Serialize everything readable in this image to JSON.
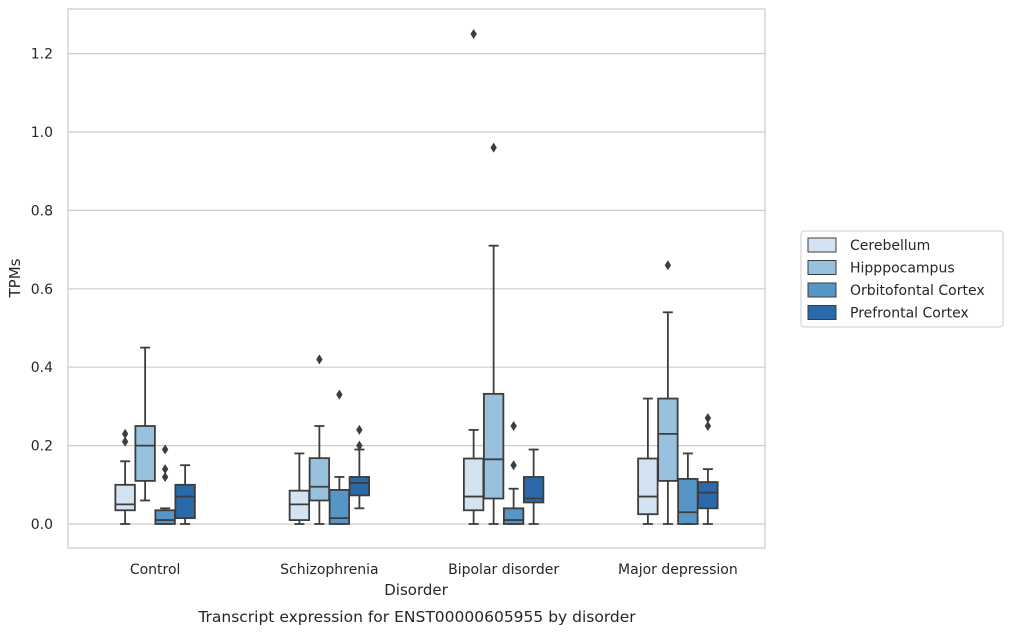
{
  "chart_data": {
    "type": "box",
    "title": "",
    "caption": "Transcript expression for ENST00000605955 by disorder",
    "xlabel": "Disorder",
    "ylabel": "TPMs",
    "ylim": [
      -0.06,
      1.32
    ],
    "yticks": [
      "0.0",
      "0.2",
      "0.4",
      "0.6",
      "0.8",
      "1.0",
      "1.2"
    ],
    "categories": [
      "Control",
      "Schizophrenia",
      "Bipolar disorder",
      "Major depression"
    ],
    "grid": "horizontal",
    "legend_position": "right",
    "series": [
      {
        "name": "Cerebellum",
        "color": "#d4e3f2",
        "boxes": [
          {
            "whislo": 0.0,
            "q1": 0.035,
            "med": 0.05,
            "q3": 0.1,
            "whishi": 0.16,
            "fliers": [
              0.21,
              0.23
            ]
          },
          {
            "whislo": 0.0,
            "q1": 0.01,
            "med": 0.05,
            "q3": 0.085,
            "whishi": 0.18,
            "fliers": []
          },
          {
            "whislo": 0.0,
            "q1": 0.035,
            "med": 0.07,
            "q3": 0.167,
            "whishi": 0.24,
            "fliers": [
              1.25
            ]
          },
          {
            "whislo": 0.0,
            "q1": 0.025,
            "med": 0.07,
            "q3": 0.167,
            "whishi": 0.32,
            "fliers": []
          }
        ]
      },
      {
        "name": "Hipppocampus",
        "color": "#98c1dd",
        "boxes": [
          {
            "whislo": 0.06,
            "q1": 0.11,
            "med": 0.2,
            "q3": 0.25,
            "whishi": 0.45,
            "fliers": []
          },
          {
            "whislo": 0.0,
            "q1": 0.06,
            "med": 0.095,
            "q3": 0.168,
            "whishi": 0.25,
            "fliers": [
              0.42
            ]
          },
          {
            "whislo": 0.0,
            "q1": 0.065,
            "med": 0.165,
            "q3": 0.332,
            "whishi": 0.71,
            "fliers": [
              0.96
            ]
          },
          {
            "whislo": 0.0,
            "q1": 0.11,
            "med": 0.23,
            "q3": 0.32,
            "whishi": 0.54,
            "fliers": [
              0.66
            ]
          }
        ]
      },
      {
        "name": "Orbitofontal Cortex",
        "color": "#5696c7",
        "boxes": [
          {
            "whislo": 0.0,
            "q1": 0.0,
            "med": 0.01,
            "q3": 0.035,
            "whishi": 0.04,
            "fliers": [
              0.12,
              0.14,
              0.19
            ]
          },
          {
            "whislo": 0.0,
            "q1": 0.0,
            "med": 0.015,
            "q3": 0.087,
            "whishi": 0.12,
            "fliers": [
              0.33
            ]
          },
          {
            "whislo": 0.0,
            "q1": 0.0,
            "med": 0.01,
            "q3": 0.04,
            "whishi": 0.09,
            "fliers": [
              0.15,
              0.25
            ]
          },
          {
            "whislo": 0.0,
            "q1": 0.0,
            "med": 0.03,
            "q3": 0.115,
            "whishi": 0.18,
            "fliers": []
          }
        ]
      },
      {
        "name": "Prefrontal Cortex",
        "color": "#2a6aab",
        "boxes": [
          {
            "whislo": 0.0,
            "q1": 0.015,
            "med": 0.07,
            "q3": 0.1,
            "whishi": 0.15,
            "fliers": []
          },
          {
            "whislo": 0.04,
            "q1": 0.073,
            "med": 0.105,
            "q3": 0.12,
            "whishi": 0.19,
            "fliers": [
              0.2,
              0.24
            ]
          },
          {
            "whislo": 0.0,
            "q1": 0.055,
            "med": 0.065,
            "q3": 0.12,
            "whishi": 0.19,
            "fliers": []
          },
          {
            "whislo": 0.0,
            "q1": 0.04,
            "med": 0.08,
            "q3": 0.107,
            "whishi": 0.14,
            "fliers": [
              0.25,
              0.27
            ]
          }
        ]
      }
    ]
  }
}
